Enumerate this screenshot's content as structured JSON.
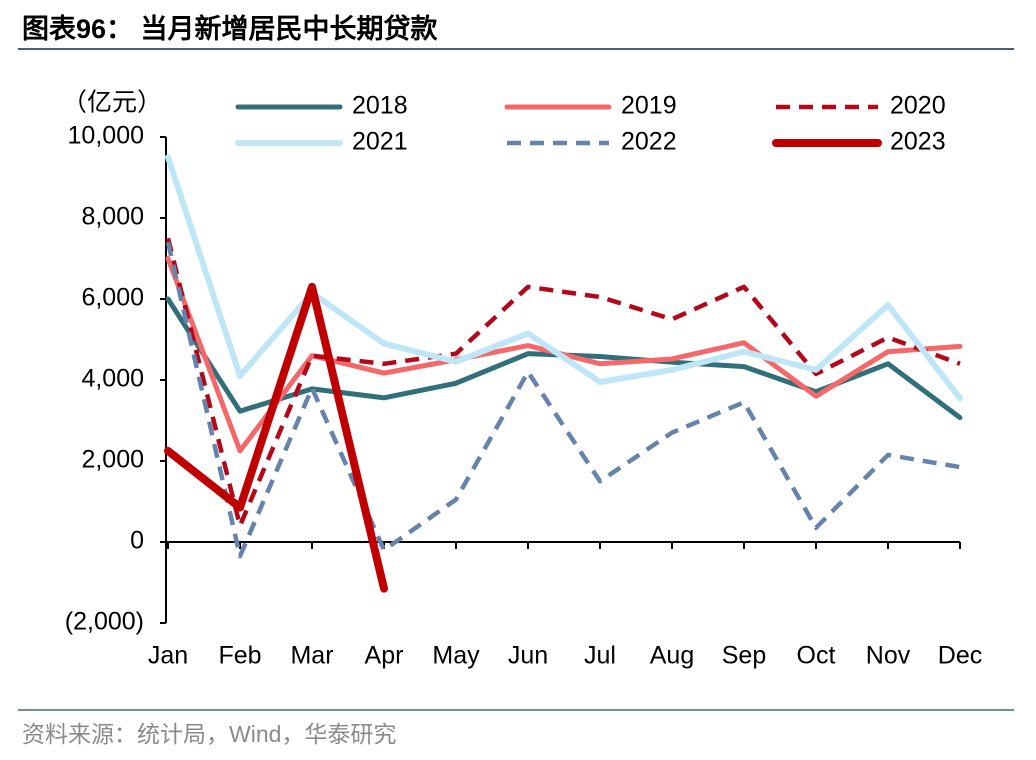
{
  "header": {
    "title": "图表96：  当月新增居民中长期贷款"
  },
  "chart_data": {
    "type": "line",
    "y_unit": "（亿元）",
    "categories": [
      "Jan",
      "Feb",
      "Mar",
      "Apr",
      "May",
      "Jun",
      "Jul",
      "Aug",
      "Sep",
      "Oct",
      "Nov",
      "Dec"
    ],
    "ylim": [
      -2000,
      10000
    ],
    "yticks": [
      {
        "value": 10000,
        "label": "10,000"
      },
      {
        "value": 8000,
        "label": "8,000"
      },
      {
        "value": 6000,
        "label": "6,000"
      },
      {
        "value": 4000,
        "label": "4,000"
      },
      {
        "value": 2000,
        "label": "2,000"
      },
      0,
      {
        "value": -2000,
        "label": "(2,000)"
      }
    ],
    "grid": false,
    "legend": "top",
    "series": [
      {
        "name": "2018",
        "color": "#31707a",
        "dashed": false,
        "values": [
          6000,
          3230,
          3780,
          3560,
          3920,
          4650,
          4580,
          4440,
          4330,
          3710,
          4400,
          3070
        ]
      },
      {
        "name": "2019",
        "color": "#f4686a",
        "dashed": false,
        "values": [
          7000,
          2250,
          4600,
          4170,
          4500,
          4850,
          4400,
          4520,
          4920,
          3600,
          4700,
          4830
        ]
      },
      {
        "name": "2020",
        "color": "#b3081a",
        "dashed": true,
        "values": [
          7500,
          400,
          4600,
          4400,
          4650,
          6300,
          6050,
          5500,
          6300,
          4150,
          5050,
          4400
        ]
      },
      {
        "name": "2021",
        "color": "#bfe6f7",
        "dashed": false,
        "values": [
          9500,
          4100,
          6150,
          4900,
          4450,
          5150,
          3950,
          4250,
          4700,
          4250,
          5850,
          3550
        ]
      },
      {
        "name": "2022",
        "color": "#6583ad",
        "dashed": true,
        "values": [
          7400,
          -350,
          3800,
          -200,
          1050,
          4200,
          1500,
          2700,
          3450,
          350,
          2150,
          1850
        ]
      },
      {
        "name": "2023",
        "color": "#c00000",
        "dashed": false,
        "values": [
          2250,
          850,
          6300,
          -1150,
          null,
          null,
          null,
          null,
          null,
          null,
          null,
          null
        ]
      }
    ]
  },
  "footer": {
    "source": "资料来源：统计局，Wind，华泰研究"
  }
}
